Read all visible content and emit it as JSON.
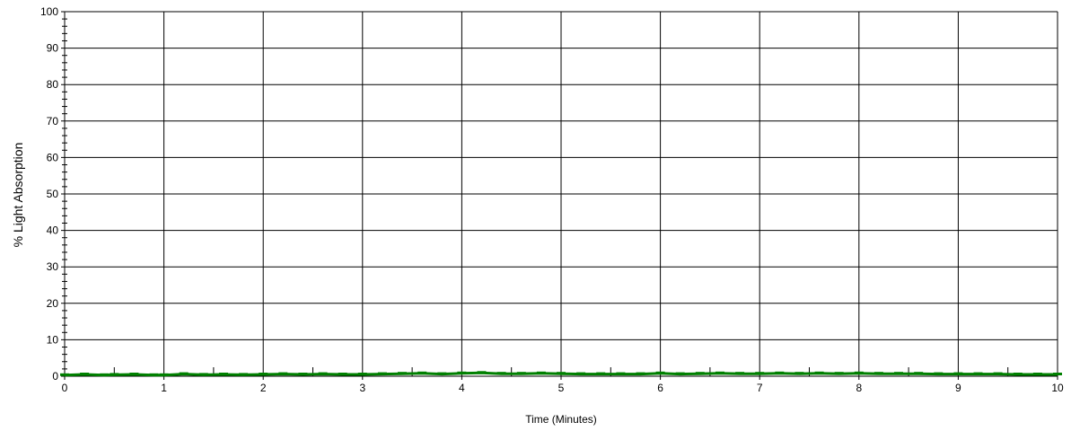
{
  "chart_data": {
    "type": "line",
    "title": "",
    "xlabel": "Time (Minutes)",
    "ylabel": "% Light Absorption",
    "xlim": [
      0,
      10
    ],
    "ylim": [
      0,
      100
    ],
    "x_ticks": [
      "0",
      "1",
      "2",
      "3",
      "4",
      "5",
      "6",
      "7",
      "8",
      "9",
      "10"
    ],
    "y_ticks": [
      "0",
      "10",
      "20",
      "30",
      "40",
      "50",
      "60",
      "70",
      "80",
      "90",
      "100"
    ],
    "grid": true,
    "line_color": "#008000",
    "series": [
      {
        "values": [
          [
            0.0,
            0.3
          ],
          [
            0.2,
            0.5
          ],
          [
            0.4,
            0.3
          ],
          [
            0.5,
            0.4
          ],
          [
            0.7,
            0.5
          ],
          [
            0.9,
            0.3
          ],
          [
            1.0,
            0.3
          ],
          [
            1.2,
            0.6
          ],
          [
            1.4,
            0.4
          ],
          [
            1.6,
            0.5
          ],
          [
            1.8,
            0.4
          ],
          [
            2.0,
            0.5
          ],
          [
            2.2,
            0.6
          ],
          [
            2.4,
            0.5
          ],
          [
            2.6,
            0.6
          ],
          [
            2.8,
            0.5
          ],
          [
            3.0,
            0.5
          ],
          [
            3.2,
            0.6
          ],
          [
            3.4,
            0.7
          ],
          [
            3.6,
            0.8
          ],
          [
            3.8,
            0.6
          ],
          [
            4.0,
            0.8
          ],
          [
            4.2,
            0.9
          ],
          [
            4.4,
            0.7
          ],
          [
            4.6,
            0.7
          ],
          [
            4.8,
            0.8
          ],
          [
            5.0,
            0.7
          ],
          [
            5.2,
            0.6
          ],
          [
            5.4,
            0.6
          ],
          [
            5.6,
            0.6
          ],
          [
            5.8,
            0.6
          ],
          [
            6.0,
            0.8
          ],
          [
            6.2,
            0.6
          ],
          [
            6.4,
            0.7
          ],
          [
            6.6,
            0.8
          ],
          [
            6.8,
            0.7
          ],
          [
            7.0,
            0.7
          ],
          [
            7.2,
            0.8
          ],
          [
            7.4,
            0.7
          ],
          [
            7.6,
            0.8
          ],
          [
            7.8,
            0.7
          ],
          [
            8.0,
            0.8
          ],
          [
            8.2,
            0.7
          ],
          [
            8.4,
            0.7
          ],
          [
            8.6,
            0.7
          ],
          [
            8.8,
            0.6
          ],
          [
            9.0,
            0.6
          ],
          [
            9.2,
            0.6
          ],
          [
            9.4,
            0.6
          ],
          [
            9.6,
            0.5
          ],
          [
            9.8,
            0.5
          ],
          [
            10.0,
            0.5
          ]
        ]
      }
    ]
  }
}
